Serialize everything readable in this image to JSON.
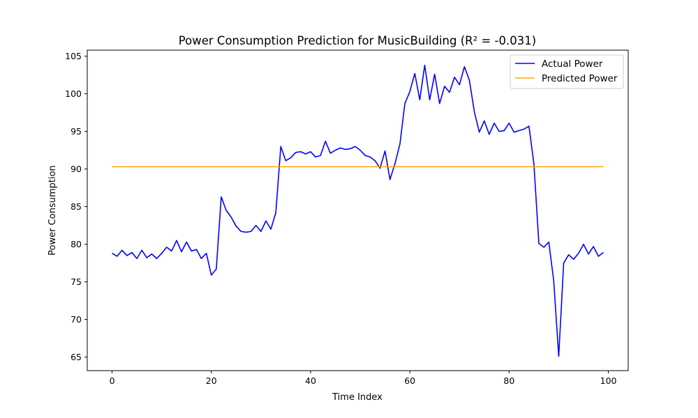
{
  "chart_data": {
    "type": "line",
    "title": "Power Consumption Prediction for MusicBuilding (R² = -0.031)",
    "xlabel": "Time Index",
    "ylabel": "Power Consumption",
    "xlim": [
      -5,
      104
    ],
    "ylim": [
      63.2,
      105.8
    ],
    "xticks": [
      0,
      20,
      40,
      60,
      80,
      100
    ],
    "yticks": [
      65,
      70,
      75,
      80,
      85,
      90,
      95,
      100,
      105
    ],
    "grid": false,
    "legend_position": "upper right",
    "series": [
      {
        "name": "Actual Power",
        "color": "#0000ff",
        "x": [
          0,
          1,
          2,
          3,
          4,
          5,
          6,
          7,
          8,
          9,
          10,
          11,
          12,
          13,
          14,
          15,
          16,
          17,
          18,
          19,
          20,
          21,
          22,
          23,
          24,
          25,
          26,
          27,
          28,
          29,
          30,
          31,
          32,
          33,
          34,
          35,
          36,
          37,
          38,
          39,
          40,
          41,
          42,
          43,
          44,
          45,
          46,
          47,
          48,
          49,
          50,
          51,
          52,
          53,
          54,
          55,
          56,
          57,
          58,
          59,
          60,
          61,
          62,
          63,
          64,
          65,
          66,
          67,
          68,
          69,
          70,
          71,
          72,
          73,
          74,
          75,
          76,
          77,
          78,
          79,
          80,
          81,
          82,
          83,
          84,
          85,
          86,
          87,
          88,
          89,
          90,
          91,
          92,
          93,
          94,
          95,
          96,
          97,
          98,
          99
        ],
        "values": [
          78.8,
          78.4,
          79.2,
          78.5,
          78.9,
          78.1,
          79.2,
          78.2,
          78.7,
          78.1,
          78.8,
          79.6,
          79.1,
          80.5,
          79.0,
          80.3,
          79.1,
          79.3,
          78.1,
          78.8,
          75.9,
          76.7,
          86.3,
          84.5,
          83.6,
          82.4,
          81.7,
          81.6,
          81.7,
          82.5,
          81.7,
          83.1,
          82.0,
          84.2,
          93.0,
          91.1,
          91.5,
          92.2,
          92.3,
          92.0,
          92.3,
          91.6,
          91.8,
          93.7,
          92.1,
          92.5,
          92.8,
          92.6,
          92.7,
          93.0,
          92.5,
          91.8,
          91.6,
          91.1,
          90.1,
          92.4,
          88.6,
          90.7,
          93.3,
          98.7,
          100.3,
          102.7,
          99.2,
          103.8,
          99.2,
          102.6,
          98.7,
          101.0,
          100.2,
          102.2,
          101.2,
          103.6,
          101.8,
          97.6,
          94.9,
          96.4,
          94.6,
          96.1,
          95.0,
          95.1,
          96.1,
          94.9,
          95.1,
          95.3,
          95.7,
          90.7,
          80.1,
          79.6,
          80.3,
          75.1,
          65.1,
          77.5,
          78.6,
          78.0,
          78.8,
          80.0,
          78.7,
          79.7,
          78.4,
          78.9
        ]
      },
      {
        "name": "Predicted Power",
        "color": "#ffa500",
        "x": [
          0,
          99
        ],
        "values": [
          90.3,
          90.3
        ]
      }
    ]
  }
}
